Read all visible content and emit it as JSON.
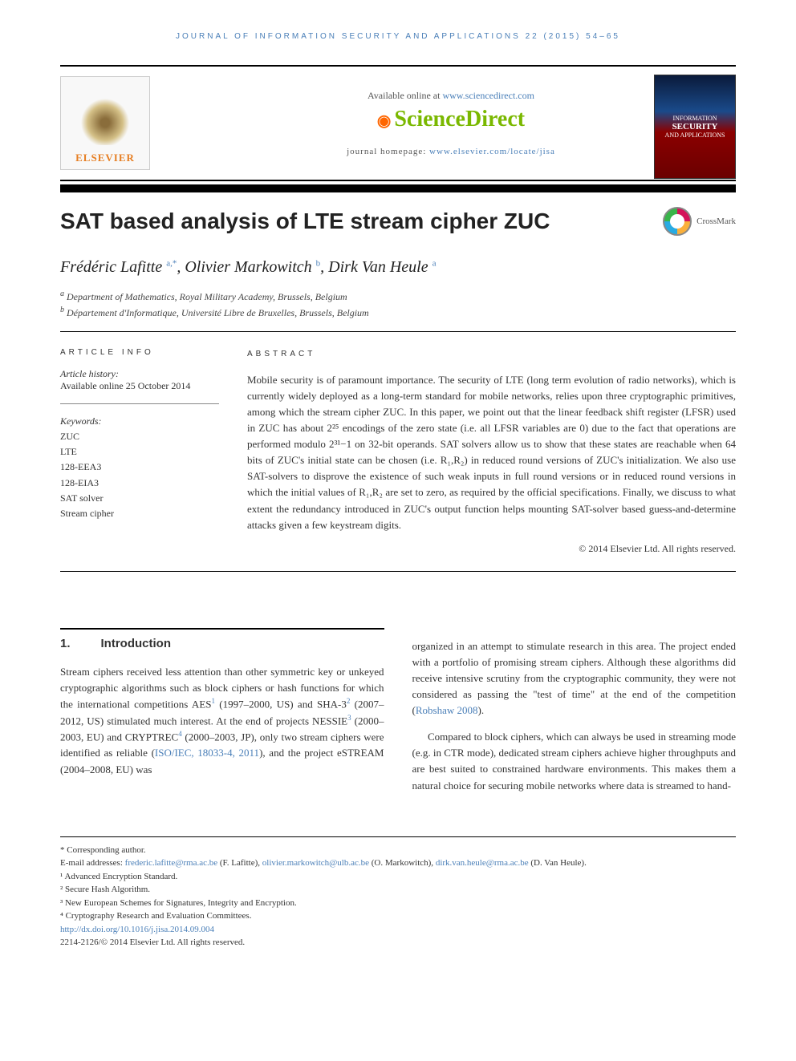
{
  "running_header": "JOURNAL OF INFORMATION SECURITY AND APPLICATIONS 22 (2015) 54–65",
  "top": {
    "available_prefix": "Available online at ",
    "available_link": "www.sciencedirect.com",
    "sd_brand": "ScienceDirect",
    "homepage_prefix": "journal homepage: ",
    "homepage_link": "www.elsevier.com/locate/jisa",
    "elsevier_label": "ELSEVIER",
    "cover_line1": "INFORMATION",
    "cover_line2": "SECURITY",
    "cover_line3": "AND APPLICATIONS"
  },
  "title": "SAT based analysis of LTE stream cipher ZUC",
  "crossmark": "CrossMark",
  "authors_html_parts": {
    "a1": "Frédéric Lafitte",
    "a1_sup": "a,*",
    "a2": "Olivier Markowitch",
    "a2_sup": "b",
    "a3": "Dirk Van Heule",
    "a3_sup": "a"
  },
  "affiliations": {
    "a": "Department of Mathematics, Royal Military Academy, Brussels, Belgium",
    "b": "Département d'Informatique, Université Libre de Bruxelles, Brussels, Belgium"
  },
  "info": {
    "head": "ARTICLE INFO",
    "history_label": "Article history:",
    "history_date": "Available online 25 October 2014",
    "kw_label": "Keywords:",
    "keywords": [
      "ZUC",
      "LTE",
      "128-EEA3",
      "128-EIA3",
      "SAT solver",
      "Stream cipher"
    ]
  },
  "abstract": {
    "head": "ABSTRACT",
    "text": "Mobile security is of paramount importance. The security of LTE (long term evolution of radio networks), which is currently widely deployed as a long-term standard for mobile networks, relies upon three cryptographic primitives, among which the stream cipher ZUC. In this paper, we point out that the linear feedback shift register (LFSR) used in ZUC has about 2²⁵ encodings of the zero state (i.e. all LFSR variables are 0) due to the fact that operations are performed modulo 2³¹−1 on 32-bit operands. SAT solvers allow us to show that these states are reachable when 64 bits of ZUC's initial state can be chosen (i.e. R₁,R₂) in reduced round versions of ZUC's initialization. We also use SAT-solvers to disprove the existence of such weak inputs in full round versions or in reduced round versions in which the initial values of R₁,R₂ are set to zero, as required by the official specifications. Finally, we discuss to what extent the redundancy introduced in ZUC's output function helps mounting SAT-solver based guess-and-determine attacks given a few keystream digits.",
    "copyright": "© 2014 Elsevier Ltd. All rights reserved."
  },
  "body": {
    "h1_num": "1.",
    "h1_text": "Introduction",
    "col1_p1_a": "Stream ciphers received less attention than other symmetric key or unkeyed cryptographic algorithms such as block ciphers or hash functions for which the international competitions AES",
    "col1_p1_b": " (1997–2000, US) and SHA-3",
    "col1_p1_c": " (2007–2012, US) stimulated much interest. At the end of projects NESSIE",
    "col1_p1_d": " (2000–2003, EU) and CRYPTREC",
    "col1_p1_e": " (2000–2003, JP), only two stream ciphers were identified as reliable (",
    "col1_ref": "ISO/IEC, 18033-4, 2011",
    "col1_p1_f": "), and the project eSTREAM (2004–2008, EU) was",
    "col2_p1_a": "organized in an attempt to stimulate research in this area. The project ended with a portfolio of promising stream ciphers. Although these algorithms did receive intensive scrutiny from the cryptographic community, they were not considered as passing the \"test of time\" at the end of the competition (",
    "col2_ref": "Robshaw 2008",
    "col2_p1_b": ").",
    "col2_p2": "Compared to block ciphers, which can always be used in streaming mode (e.g. in CTR mode), dedicated stream ciphers achieve higher throughputs and are best suited to constrained hardware environments. This makes them a natural choice for securing mobile networks where data is streamed to hand-"
  },
  "footnotes": {
    "corr": "* Corresponding author.",
    "email_prefix": "E-mail addresses: ",
    "email1": "frederic.lafitte@rma.ac.be",
    "email1_who": " (F. Lafitte), ",
    "email2": "olivier.markowitch@ulb.ac.be",
    "email2_who": " (O. Markowitch), ",
    "email3": "dirk.van.heule@rma.ac.be",
    "email3_who": " (D. Van Heule).",
    "n1": "¹ Advanced Encryption Standard.",
    "n2": "² Secure Hash Algorithm.",
    "n3": "³ New European Schemes for Signatures, Integrity and Encryption.",
    "n4": "⁴ Cryptography Research and Evaluation Committees.",
    "doi": "http://dx.doi.org/10.1016/j.jisa.2014.09.004",
    "issn": "2214-2126/© 2014 Elsevier Ltd. All rights reserved."
  },
  "colors": {
    "link": "#4a7fb8",
    "sd_green": "#7ab800",
    "sd_orange": "#ff6600",
    "elsevier_orange": "#e67e22"
  }
}
